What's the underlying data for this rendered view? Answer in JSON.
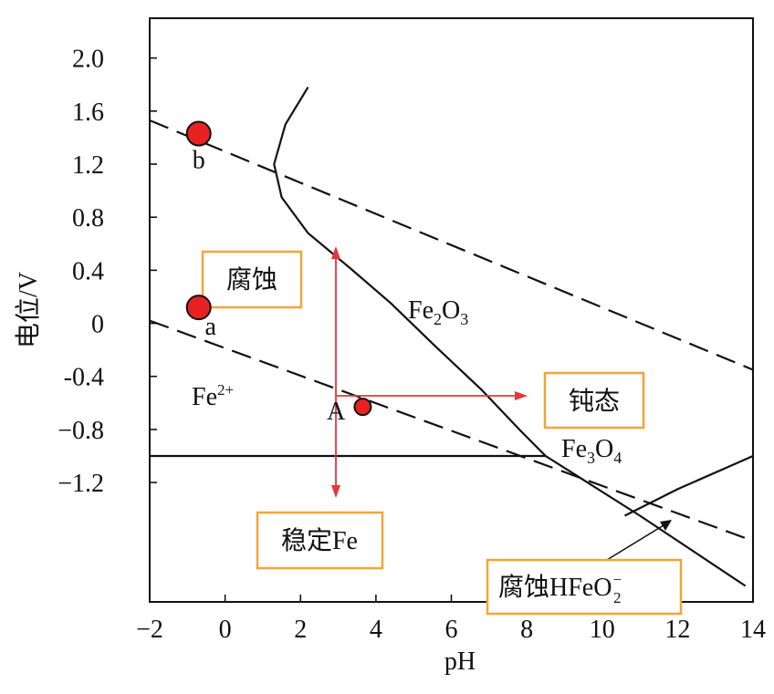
{
  "chart_data": {
    "type": "line",
    "title": "",
    "xlabel": "pH",
    "ylabel": "电位/V",
    "xlim": [
      -2,
      14
    ],
    "ylim": [
      -2.1,
      2.3
    ],
    "x_ticks": [
      -2,
      0,
      2,
      4,
      6,
      8,
      10,
      12,
      14
    ],
    "x_tick_labels": [
      "−2",
      "0",
      "2",
      "4",
      "6",
      "8",
      "10",
      "12",
      "14"
    ],
    "y_ticks": [
      2.0,
      1.6,
      1.2,
      0.8,
      0.4,
      0,
      -0.4,
      -0.8,
      -1.2
    ],
    "y_tick_labels": [
      "2.0",
      "1.6",
      "1.2",
      "0.8",
      "0.4",
      "0",
      "-0.4",
      "−0.8",
      "−1.2"
    ],
    "grid": false,
    "series": [
      {
        "style": "dashed",
        "x": [
          -2,
          14
        ],
        "y": [
          1.53,
          -0.35
        ]
      },
      {
        "style": "dashed",
        "x": [
          -2,
          14
        ],
        "y": [
          0.02,
          -1.64
        ]
      },
      {
        "style": "solid",
        "x": [
          -2,
          8.5
        ],
        "y": [
          -1.0,
          -1.0
        ]
      },
      {
        "style": "solid",
        "x": [
          2.2,
          1.6,
          1.3,
          1.5,
          2.2,
          3.3,
          4.4,
          5.6,
          6.8,
          7.8,
          8.5,
          11.0,
          13.8
        ],
        "y": [
          1.78,
          1.5,
          1.2,
          0.95,
          0.68,
          0.42,
          0.15,
          -0.18,
          -0.5,
          -0.8,
          -1.0,
          -1.45,
          -1.98
        ]
      },
      {
        "style": "solid",
        "x": [
          10.6,
          12.0,
          14.0
        ],
        "y": [
          -1.45,
          -1.25,
          -1.0
        ]
      }
    ],
    "points": [
      {
        "label": "b",
        "x": -0.7,
        "y": 1.43,
        "color": "#e82121"
      },
      {
        "label": "a",
        "x": -0.7,
        "y": 0.12,
        "color": "#e82121"
      },
      {
        "label": "A",
        "x": 3.65,
        "y": -0.63,
        "color": "#e82121"
      }
    ],
    "region_labels": {
      "fe2": "Fe",
      "fe2_sup": "2+",
      "fe2o3": "Fe",
      "fe2o3_sub1": "2",
      "fe2o3_mid": "O",
      "fe2o3_sub2": "3",
      "fe3o4": "Fe",
      "fe3o4_sub1": "3",
      "fe3o4_mid": "O",
      "fe3o4_sub2": "4"
    },
    "annotations": {
      "corrosion": "腐蚀",
      "passivation": "钝态",
      "stable_fe": "稳定Fe",
      "hfeo2_prefix": "腐蚀HFeO",
      "hfeo2_sub": "2",
      "hfeo2_sup": "−"
    },
    "colors": {
      "line": "#111111",
      "arrow": "#e8343a",
      "point_fill": "#e82121",
      "box_border": "#f2a53a"
    }
  }
}
